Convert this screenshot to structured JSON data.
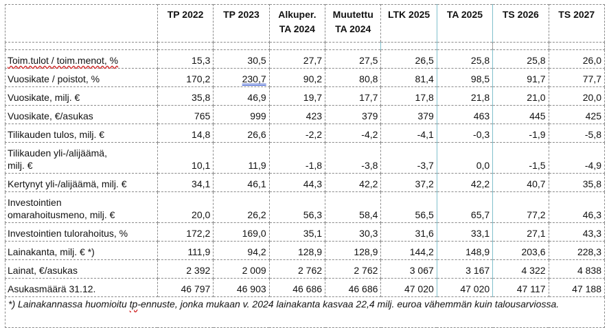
{
  "columns": [
    "TP 2022",
    "TP 2023",
    "Alkuper. TA 2024",
    "Muutettu TA 2024",
    "LTK 2025",
    "TA 2025",
    "TS 2026",
    "TS 2027"
  ],
  "column_lines": [
    [
      "TP 2022"
    ],
    [
      "TP 2023"
    ],
    [
      "Alkuper.",
      "TA 2024"
    ],
    [
      "Muutettu",
      "TA 2024"
    ],
    [
      "LTK 2025"
    ],
    [
      "TA 2025"
    ],
    [
      "TS 2026"
    ],
    [
      "TS 2027"
    ]
  ],
  "rows": [
    {
      "label_parts": [
        "Toim.tulot / toim.menot, %"
      ],
      "values": [
        "15,3",
        "30,5",
        "27,7",
        "27,5",
        "26,5",
        "25,8",
        "25,8",
        "26,0"
      ]
    },
    {
      "label_parts": [
        "Vuosikate / poistot, %"
      ],
      "values": [
        "170,2",
        "230,7",
        "90,2",
        "80,8",
        "81,4",
        "98,5",
        "91,7",
        "77,7"
      ]
    },
    {
      "label_parts": [
        "Vuosikate, milj. €"
      ],
      "values": [
        "35,8",
        "46,9",
        "19,7",
        "17,7",
        "17,8",
        "21,8",
        "21,0",
        "20,0"
      ]
    },
    {
      "label_parts": [
        "Vuosikate, €/asukas"
      ],
      "values": [
        "765",
        "999",
        "423",
        "379",
        "379",
        "463",
        "445",
        "425"
      ]
    },
    {
      "label_parts": [
        "Tilikauden tulos, milj. €"
      ],
      "values": [
        "14,8",
        "26,6",
        "-2,2",
        "-4,2",
        "-4,1",
        "-0,3",
        "-1,9",
        "-5,8"
      ]
    },
    {
      "label_parts": [
        "Tilikauden yli-/alijäämä,",
        "milj. €"
      ],
      "values": [
        "10,1",
        "11,9",
        "-1,8",
        "-3,8",
        "-3,7",
        "0,0",
        "-1,5",
        "-4,9"
      ]
    },
    {
      "label_parts": [
        "Kertynyt yli-/alijäämä, milj. €"
      ],
      "values": [
        "34,1",
        "46,1",
        "44,3",
        "42,2",
        "37,2",
        "42,2",
        "40,7",
        "35,8"
      ]
    },
    {
      "label_parts": [
        "Investointien",
        "omarahoitusmeno, milj. €"
      ],
      "values": [
        "20,0",
        "26,2",
        "56,3",
        "58,4",
        "56,5",
        "65,7",
        "77,2",
        "46,3"
      ]
    },
    {
      "label_parts": [
        "Investointien tulorahoitus, %"
      ],
      "values": [
        "172,2",
        "169,0",
        "35,1",
        "30,3",
        "31,6",
        "33,1",
        "27,1",
        "43,3"
      ]
    },
    {
      "label_parts": [
        "Lainakanta, milj. € *)"
      ],
      "values": [
        "111,9",
        "94,2",
        "128,9",
        "128,9",
        "144,2",
        "148,9",
        "203,6",
        "228,3"
      ]
    },
    {
      "label_parts": [
        "Lainat, €/asukas"
      ],
      "values": [
        "2 392",
        "2 009",
        "2 762",
        "2 762",
        "3 067",
        "3 167",
        "4 322",
        "4 838"
      ]
    },
    {
      "label_parts": [
        "Asukasmäärä 31.12."
      ],
      "values": [
        "46 797",
        "46 903",
        "46 686",
        "46 686",
        "47 020",
        "47 020",
        "47 117",
        "47 188"
      ]
    }
  ],
  "footnote": "*) Lainakannassa huomioitu tp-ennuste, jonka mukaan v. 2024 lainakanta kasvaa 22,4 milj. euroa vähemmän kuin talousarviossa."
}
